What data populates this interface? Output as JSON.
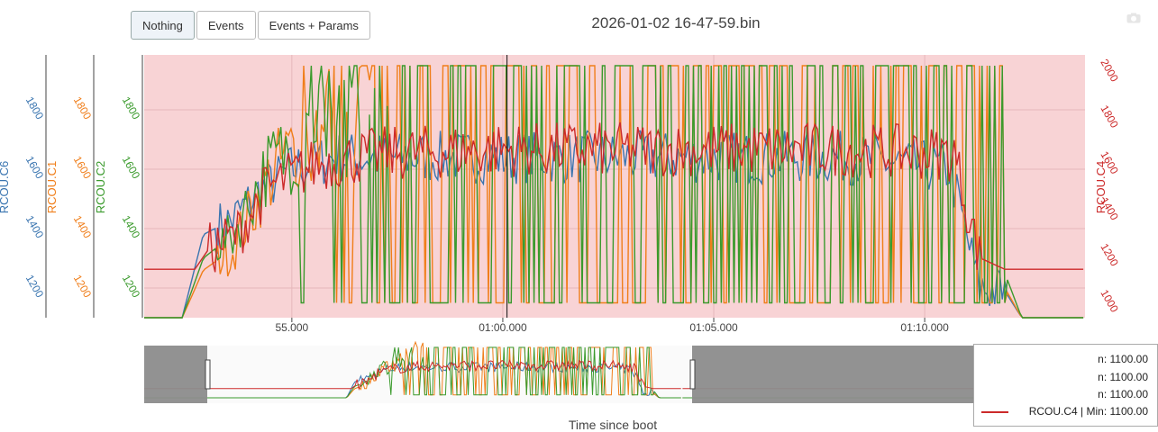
{
  "toolbar": {
    "buttons": [
      {
        "label": "Nothing",
        "active": true
      },
      {
        "label": "Events",
        "active": false
      },
      {
        "label": "Events + Params",
        "active": false
      }
    ]
  },
  "icons": {
    "camera": "camera-icon"
  },
  "chart_data": {
    "type": "line",
    "title": "2026-01-02 16-47-59.bin",
    "xlabel": "Time since boot",
    "x_range_seconds": [
      3291.5,
      3313.8
    ],
    "x_ticks": [
      {
        "value": 3295,
        "label": "55.000"
      },
      {
        "value": 3300,
        "label": "01:00.000"
      },
      {
        "value": 3305,
        "label": "01:05.000"
      },
      {
        "value": 3310,
        "label": "01:10.000"
      }
    ],
    "background_color": "#f8d3d5",
    "colors": {
      "C6": "#3a75b0",
      "C1": "#f07e1a",
      "C2": "#3a9a2c",
      "C4": "#cc2a2a"
    },
    "axes": [
      {
        "id": "C6",
        "label": "RCOU.C6",
        "side": "left",
        "range": [
          1100,
          1985
        ],
        "ticks": [
          1200,
          1400,
          1600,
          1800
        ]
      },
      {
        "id": "C1",
        "label": "RCOU.C1",
        "side": "left",
        "range": [
          1100,
          1985
        ],
        "ticks": [
          1200,
          1400,
          1600,
          1800
        ]
      },
      {
        "id": "C2",
        "label": "RCOU.C2",
        "side": "left",
        "range": [
          1100,
          1985
        ],
        "ticks": [
          1200,
          1400,
          1600,
          1800
        ]
      },
      {
        "id": "C4",
        "label": "RCOU.C4",
        "side": "right",
        "range": [
          890,
          2030
        ],
        "ticks": [
          1000,
          1200,
          1400,
          1600,
          1800,
          2000
        ]
      }
    ],
    "cursor_x": 3300.1,
    "series": [
      {
        "name": "RCOU.C6",
        "axis": "C6",
        "pattern": "dither",
        "idle": 1100,
        "profile": [
          [
            3292.4,
            1100
          ],
          [
            3292.9,
            1380
          ],
          [
            3293.6,
            1430
          ],
          [
            3294.2,
            1520
          ],
          [
            3295.0,
            1600
          ],
          [
            3296.0,
            1640
          ],
          [
            3300.0,
            1640
          ],
          [
            3308.0,
            1640
          ],
          [
            3310.6,
            1600
          ],
          [
            3311.3,
            1200
          ],
          [
            3311.9,
            1190
          ],
          [
            3312.3,
            1100
          ]
        ],
        "amp": 90
      },
      {
        "name": "RCOU.C1",
        "axis": "C1",
        "pattern": "bang",
        "idle": 1100,
        "lo": 1150,
        "hi": 1985,
        "profile": [
          [
            3292.4,
            1100
          ],
          [
            3292.9,
            1260
          ],
          [
            3293.6,
            1330
          ],
          [
            3294.4,
            1560
          ],
          [
            3295.2,
            1700
          ],
          [
            3296.2,
            1800
          ],
          [
            3297.3,
            1880
          ],
          [
            3298.2,
            1985
          ],
          [
            3310.8,
            1985
          ],
          [
            3311.3,
            1260
          ],
          [
            3311.9,
            1200
          ],
          [
            3312.3,
            1100
          ]
        ],
        "amp": 80
      },
      {
        "name": "RCOU.C2",
        "axis": "C2",
        "pattern": "bang",
        "idle": 1100,
        "lo": 1150,
        "hi": 1985,
        "profile": [
          [
            3292.4,
            1100
          ],
          [
            3292.9,
            1300
          ],
          [
            3293.6,
            1380
          ],
          [
            3294.4,
            1600
          ],
          [
            3295.2,
            1700
          ],
          [
            3296.2,
            1780
          ],
          [
            3297.3,
            1860
          ],
          [
            3298.2,
            1970
          ],
          [
            3310.8,
            1985
          ],
          [
            3311.3,
            1400
          ],
          [
            3311.9,
            1250
          ],
          [
            3312.3,
            1100
          ]
        ],
        "amp": 80
      },
      {
        "name": "RCOU.C4",
        "axis": "C4",
        "pattern": "dither",
        "idle": 1100,
        "profile": [
          [
            3292.2,
            1100
          ],
          [
            3292.7,
            1100
          ],
          [
            3293.0,
            1180
          ],
          [
            3293.7,
            1250
          ],
          [
            3294.4,
            1450
          ],
          [
            3295.5,
            1550
          ],
          [
            3297.0,
            1600
          ],
          [
            3300.0,
            1620
          ],
          [
            3308.0,
            1620
          ],
          [
            3310.7,
            1600
          ],
          [
            3311.3,
            1150
          ],
          [
            3311.9,
            1100
          ]
        ],
        "amp": 120
      }
    ]
  },
  "legend": {
    "rows": [
      {
        "text": "n: 1100.00",
        "color": ""
      },
      {
        "text": "n: 1100.00",
        "color": ""
      },
      {
        "text": "n: 1100.00",
        "color": ""
      },
      {
        "text": "RCOU.C4 | Min: 1100.00",
        "color": "#cc2a2a"
      }
    ]
  },
  "range_selector": {
    "window_color": "#8c8c8c"
  }
}
